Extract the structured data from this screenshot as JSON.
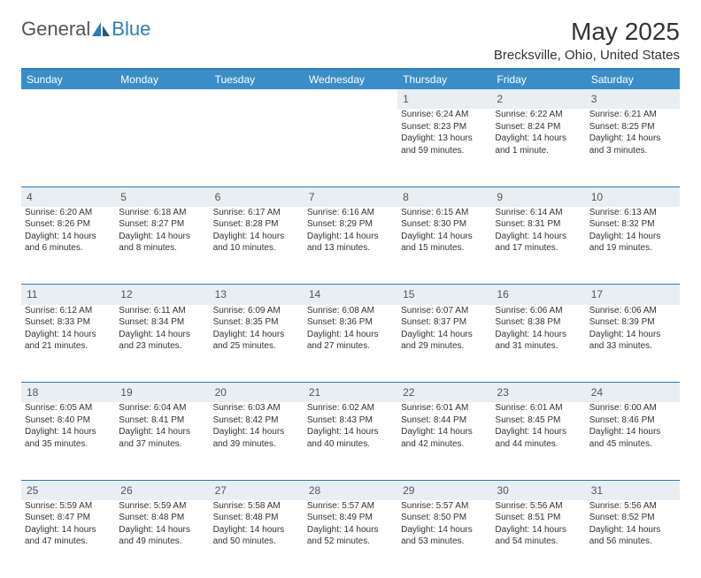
{
  "logo": {
    "text_gray": "General",
    "text_blue": "Blue"
  },
  "title": "May 2025",
  "location": "Brecksville, Ohio, United States",
  "colors": {
    "header_bg": "#3b8dc9",
    "header_border": "#2d7bbd",
    "daynum_bg": "#e9eef2",
    "text": "#333333",
    "divider": "#2d7bbd"
  },
  "columns": [
    "Sunday",
    "Monday",
    "Tuesday",
    "Wednesday",
    "Thursday",
    "Friday",
    "Saturday"
  ],
  "weeks": [
    {
      "nums": [
        "",
        "",
        "",
        "",
        "1",
        "2",
        "3"
      ],
      "cells": [
        null,
        null,
        null,
        null,
        {
          "sr": "Sunrise: 6:24 AM",
          "ss": "Sunset: 8:23 PM",
          "d1": "Daylight: 13 hours",
          "d2": "and 59 minutes."
        },
        {
          "sr": "Sunrise: 6:22 AM",
          "ss": "Sunset: 8:24 PM",
          "d1": "Daylight: 14 hours",
          "d2": "and 1 minute."
        },
        {
          "sr": "Sunrise: 6:21 AM",
          "ss": "Sunset: 8:25 PM",
          "d1": "Daylight: 14 hours",
          "d2": "and 3 minutes."
        }
      ]
    },
    {
      "nums": [
        "4",
        "5",
        "6",
        "7",
        "8",
        "9",
        "10"
      ],
      "cells": [
        {
          "sr": "Sunrise: 6:20 AM",
          "ss": "Sunset: 8:26 PM",
          "d1": "Daylight: 14 hours",
          "d2": "and 6 minutes."
        },
        {
          "sr": "Sunrise: 6:18 AM",
          "ss": "Sunset: 8:27 PM",
          "d1": "Daylight: 14 hours",
          "d2": "and 8 minutes."
        },
        {
          "sr": "Sunrise: 6:17 AM",
          "ss": "Sunset: 8:28 PM",
          "d1": "Daylight: 14 hours",
          "d2": "and 10 minutes."
        },
        {
          "sr": "Sunrise: 6:16 AM",
          "ss": "Sunset: 8:29 PM",
          "d1": "Daylight: 14 hours",
          "d2": "and 13 minutes."
        },
        {
          "sr": "Sunrise: 6:15 AM",
          "ss": "Sunset: 8:30 PM",
          "d1": "Daylight: 14 hours",
          "d2": "and 15 minutes."
        },
        {
          "sr": "Sunrise: 6:14 AM",
          "ss": "Sunset: 8:31 PM",
          "d1": "Daylight: 14 hours",
          "d2": "and 17 minutes."
        },
        {
          "sr": "Sunrise: 6:13 AM",
          "ss": "Sunset: 8:32 PM",
          "d1": "Daylight: 14 hours",
          "d2": "and 19 minutes."
        }
      ]
    },
    {
      "nums": [
        "11",
        "12",
        "13",
        "14",
        "15",
        "16",
        "17"
      ],
      "cells": [
        {
          "sr": "Sunrise: 6:12 AM",
          "ss": "Sunset: 8:33 PM",
          "d1": "Daylight: 14 hours",
          "d2": "and 21 minutes."
        },
        {
          "sr": "Sunrise: 6:11 AM",
          "ss": "Sunset: 8:34 PM",
          "d1": "Daylight: 14 hours",
          "d2": "and 23 minutes."
        },
        {
          "sr": "Sunrise: 6:09 AM",
          "ss": "Sunset: 8:35 PM",
          "d1": "Daylight: 14 hours",
          "d2": "and 25 minutes."
        },
        {
          "sr": "Sunrise: 6:08 AM",
          "ss": "Sunset: 8:36 PM",
          "d1": "Daylight: 14 hours",
          "d2": "and 27 minutes."
        },
        {
          "sr": "Sunrise: 6:07 AM",
          "ss": "Sunset: 8:37 PM",
          "d1": "Daylight: 14 hours",
          "d2": "and 29 minutes."
        },
        {
          "sr": "Sunrise: 6:06 AM",
          "ss": "Sunset: 8:38 PM",
          "d1": "Daylight: 14 hours",
          "d2": "and 31 minutes."
        },
        {
          "sr": "Sunrise: 6:06 AM",
          "ss": "Sunset: 8:39 PM",
          "d1": "Daylight: 14 hours",
          "d2": "and 33 minutes."
        }
      ]
    },
    {
      "nums": [
        "18",
        "19",
        "20",
        "21",
        "22",
        "23",
        "24"
      ],
      "cells": [
        {
          "sr": "Sunrise: 6:05 AM",
          "ss": "Sunset: 8:40 PM",
          "d1": "Daylight: 14 hours",
          "d2": "and 35 minutes."
        },
        {
          "sr": "Sunrise: 6:04 AM",
          "ss": "Sunset: 8:41 PM",
          "d1": "Daylight: 14 hours",
          "d2": "and 37 minutes."
        },
        {
          "sr": "Sunrise: 6:03 AM",
          "ss": "Sunset: 8:42 PM",
          "d1": "Daylight: 14 hours",
          "d2": "and 39 minutes."
        },
        {
          "sr": "Sunrise: 6:02 AM",
          "ss": "Sunset: 8:43 PM",
          "d1": "Daylight: 14 hours",
          "d2": "and 40 minutes."
        },
        {
          "sr": "Sunrise: 6:01 AM",
          "ss": "Sunset: 8:44 PM",
          "d1": "Daylight: 14 hours",
          "d2": "and 42 minutes."
        },
        {
          "sr": "Sunrise: 6:01 AM",
          "ss": "Sunset: 8:45 PM",
          "d1": "Daylight: 14 hours",
          "d2": "and 44 minutes."
        },
        {
          "sr": "Sunrise: 6:00 AM",
          "ss": "Sunset: 8:46 PM",
          "d1": "Daylight: 14 hours",
          "d2": "and 45 minutes."
        }
      ]
    },
    {
      "nums": [
        "25",
        "26",
        "27",
        "28",
        "29",
        "30",
        "31"
      ],
      "cells": [
        {
          "sr": "Sunrise: 5:59 AM",
          "ss": "Sunset: 8:47 PM",
          "d1": "Daylight: 14 hours",
          "d2": "and 47 minutes."
        },
        {
          "sr": "Sunrise: 5:59 AM",
          "ss": "Sunset: 8:48 PM",
          "d1": "Daylight: 14 hours",
          "d2": "and 49 minutes."
        },
        {
          "sr": "Sunrise: 5:58 AM",
          "ss": "Sunset: 8:48 PM",
          "d1": "Daylight: 14 hours",
          "d2": "and 50 minutes."
        },
        {
          "sr": "Sunrise: 5:57 AM",
          "ss": "Sunset: 8:49 PM",
          "d1": "Daylight: 14 hours",
          "d2": "and 52 minutes."
        },
        {
          "sr": "Sunrise: 5:57 AM",
          "ss": "Sunset: 8:50 PM",
          "d1": "Daylight: 14 hours",
          "d2": "and 53 minutes."
        },
        {
          "sr": "Sunrise: 5:56 AM",
          "ss": "Sunset: 8:51 PM",
          "d1": "Daylight: 14 hours",
          "d2": "and 54 minutes."
        },
        {
          "sr": "Sunrise: 5:56 AM",
          "ss": "Sunset: 8:52 PM",
          "d1": "Daylight: 14 hours",
          "d2": "and 56 minutes."
        }
      ]
    }
  ]
}
